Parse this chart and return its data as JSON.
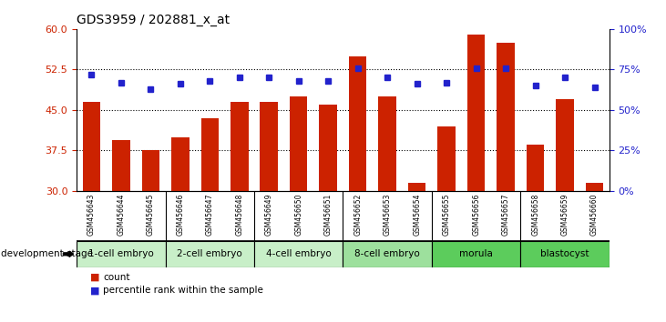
{
  "title": "GDS3959 / 202881_x_at",
  "samples": [
    "GSM456643",
    "GSM456644",
    "GSM456645",
    "GSM456646",
    "GSM456647",
    "GSM456648",
    "GSM456649",
    "GSM456650",
    "GSM456651",
    "GSM456652",
    "GSM456653",
    "GSM456654",
    "GSM456655",
    "GSM456656",
    "GSM456657",
    "GSM456658",
    "GSM456659",
    "GSM456660"
  ],
  "bar_values": [
    46.5,
    39.5,
    37.5,
    40.0,
    43.5,
    46.5,
    46.5,
    47.5,
    46.0,
    55.0,
    47.5,
    31.5,
    42.0,
    59.0,
    57.5,
    38.5,
    47.0,
    31.5
  ],
  "percentile_values": [
    72,
    67,
    63,
    66,
    68,
    70,
    70,
    68,
    68,
    76,
    70,
    66,
    67,
    76,
    76,
    65,
    70,
    64
  ],
  "ylim_left": [
    30,
    60
  ],
  "ylim_right": [
    0,
    100
  ],
  "yticks_left": [
    30,
    37.5,
    45,
    52.5,
    60
  ],
  "yticks_right": [
    0,
    25,
    50,
    75,
    100
  ],
  "bar_color": "#cc2200",
  "dot_color": "#2222cc",
  "stage_groups": [
    {
      "label": "1-cell embryo",
      "start": 0,
      "end": 3
    },
    {
      "label": "2-cell embryo",
      "start": 3,
      "end": 6
    },
    {
      "label": "4-cell embryo",
      "start": 6,
      "end": 9
    },
    {
      "label": "8-cell embryo",
      "start": 9,
      "end": 12
    },
    {
      "label": "morula",
      "start": 12,
      "end": 15
    },
    {
      "label": "blastocyst",
      "start": 15,
      "end": 18
    }
  ],
  "stage_colors": [
    "#c8efc8",
    "#c8efc8",
    "#c8efc8",
    "#9de09d",
    "#5ccc5c",
    "#5ccc5c"
  ],
  "sample_bg_color": "#d3d3d3",
  "legend_count_color": "#cc2200",
  "legend_dot_color": "#2222cc",
  "dev_stage_label": "development stage",
  "grid_lines": [
    37.5,
    45.0,
    52.5
  ]
}
